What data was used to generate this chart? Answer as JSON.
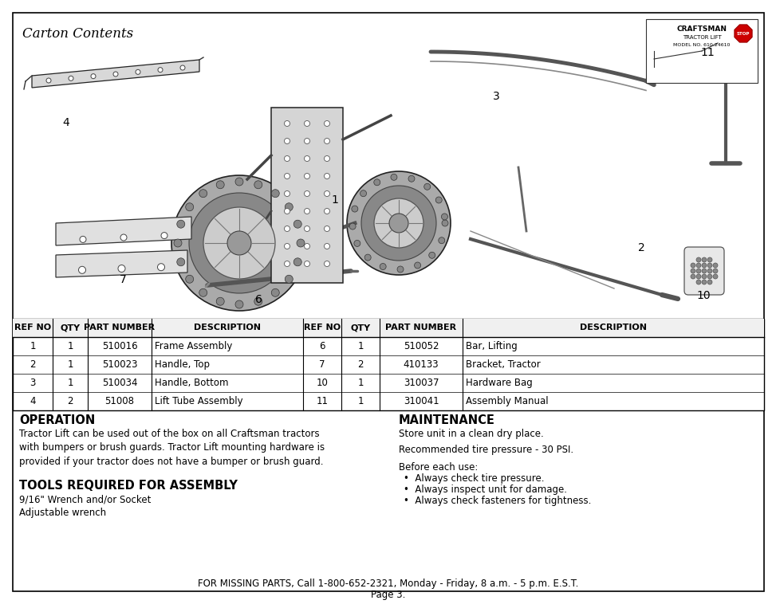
{
  "title": "Carton Contents",
  "bg_color": "#ffffff",
  "table_headers": [
    "REF NO",
    "QTY",
    "PART NUMBER",
    "DESCRIPTION",
    "REF NO",
    "QTY",
    "PART NUMBER",
    "DESCRIPTION"
  ],
  "table_rows": [
    [
      "1",
      "1",
      "510016",
      "Frame Assembly",
      "6",
      "1",
      "510052",
      "Bar, Lifting"
    ],
    [
      "2",
      "1",
      "510023",
      "Handle, Top",
      "7",
      "2",
      "410133",
      "Bracket, Tractor"
    ],
    [
      "3",
      "1",
      "510034",
      "Handle, Bottom",
      "10",
      "1",
      "310037",
      "Hardware Bag"
    ],
    [
      "4",
      "2",
      "51008",
      "Lift Tube Assembly",
      "11",
      "1",
      "310041",
      "Assembly Manual"
    ]
  ],
  "operation_title": "OPERATION",
  "operation_text": "Tractor Lift can be used out of the box on all Craftsman tractors\nwith bumpers or brush guards. Tractor Lift mounting hardware is\nprovided if your tractor does not have a bumper or brush guard.",
  "tools_title": "TOOLS REQUIRED FOR ASSEMBLY",
  "tools_text": "9/16\" Wrench and/or Socket\nAdjustable wrench",
  "maintenance_title": "MAINTENANCE",
  "maintenance_line1": "Store unit in a clean dry place.",
  "maintenance_line2": "Recommended tire pressure - 30 PSI.",
  "maintenance_line3": "Before each use:",
  "maintenance_bullets": [
    "Always check tire pressure.",
    "Always inspect unit for damage.",
    "Always check fasteners for tightness."
  ],
  "footer_line1": "FOR MISSING PARTS, Call 1-800-652-2321, Monday - Friday, 8 a.m. - 5 p.m. E.S.T.",
  "footer_line2": "Page 3."
}
